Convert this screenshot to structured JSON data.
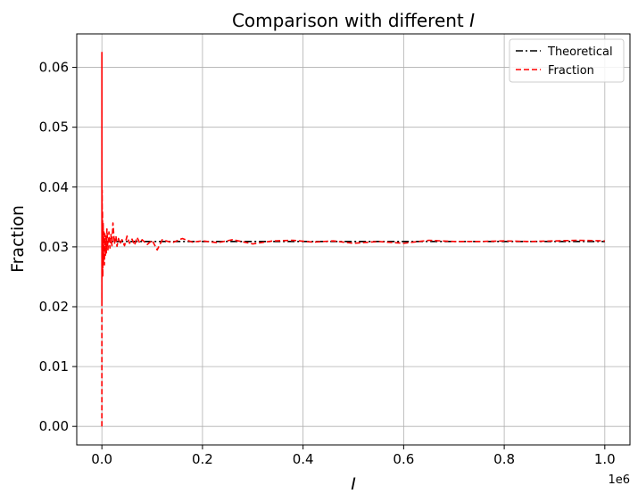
{
  "chart_data": {
    "type": "line",
    "title_prefix": "Comparison with different ",
    "title_var": "I",
    "xlabel": "I",
    "ylabel": "Fraction",
    "x_offset_label": "1e6",
    "xlim": [
      -50000,
      1050000
    ],
    "ylim": [
      -0.0031,
      0.0656
    ],
    "x_ticks": [
      0,
      200000,
      400000,
      600000,
      800000,
      1000000
    ],
    "x_tick_labels": [
      "0.0",
      "0.2",
      "0.4",
      "0.6",
      "0.8",
      "1.0"
    ],
    "y_ticks": [
      0.0,
      0.01,
      0.02,
      0.03,
      0.04,
      0.05,
      0.06
    ],
    "y_tick_labels": [
      "0.00",
      "0.01",
      "0.02",
      "0.03",
      "0.04",
      "0.05",
      "0.06"
    ],
    "grid": true,
    "legend_position": "top-right",
    "series": [
      {
        "name": "Theoretical",
        "color": "#000000",
        "style": "dashdot",
        "x": [
          1,
          1000000
        ],
        "y": [
          0.0309,
          0.0309
        ]
      },
      {
        "name": "Fraction",
        "color": "#ff0000",
        "style": "dashed",
        "x": [
          1,
          16,
          50,
          120,
          250,
          500,
          800,
          1200,
          1800,
          2500,
          3200,
          4000,
          5000,
          6000,
          7000,
          8000,
          9000,
          10000,
          12000,
          14000,
          16000,
          18000,
          20000,
          22000,
          25000,
          28000,
          30000,
          33000,
          36000,
          40000,
          45000,
          50000,
          55000,
          60000,
          65000,
          70000,
          75000,
          80000,
          90000,
          100000,
          110000,
          120000,
          140000,
          160000,
          180000,
          200000,
          230000,
          260000,
          300000,
          340000,
          380000,
          420000,
          460000,
          500000,
          550000,
          600000,
          650000,
          700000,
          750000,
          800000,
          850000,
          900000,
          950000,
          1000000
        ],
        "y": [
          0.0,
          0.0625,
          0.021,
          0.038,
          0.026,
          0.0395,
          0.028,
          0.036,
          0.025,
          0.034,
          0.0275,
          0.0325,
          0.027,
          0.0322,
          0.0285,
          0.0318,
          0.029,
          0.033,
          0.0295,
          0.0325,
          0.0298,
          0.0321,
          0.0302,
          0.034,
          0.0305,
          0.0318,
          0.0301,
          0.0314,
          0.0305,
          0.0312,
          0.0302,
          0.0318,
          0.0306,
          0.0313,
          0.0303,
          0.0316,
          0.0307,
          0.0312,
          0.0304,
          0.0311,
          0.0295,
          0.0312,
          0.0307,
          0.0314,
          0.0308,
          0.031,
          0.0307,
          0.0312,
          0.0305,
          0.031,
          0.0311,
          0.0308,
          0.031,
          0.0306,
          0.0309,
          0.0306,
          0.0311,
          0.0309,
          0.0309,
          0.031,
          0.0309,
          0.031,
          0.0311,
          0.031
        ]
      }
    ]
  }
}
